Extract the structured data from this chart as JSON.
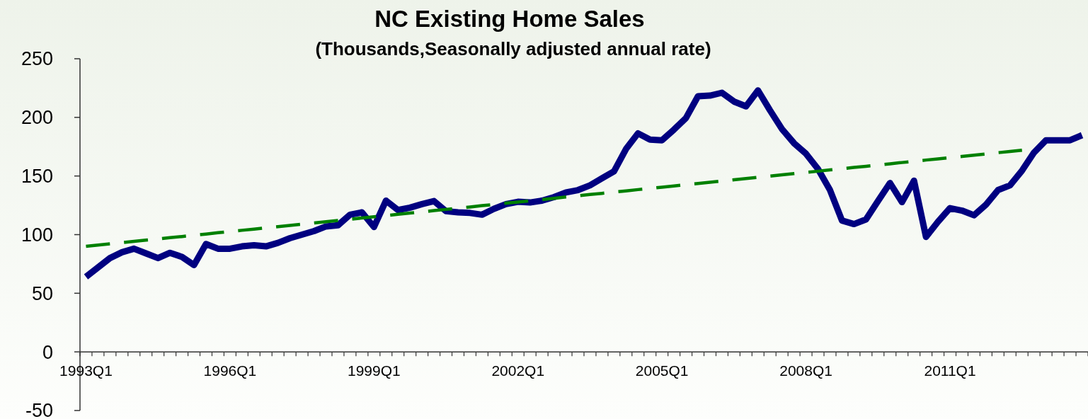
{
  "chart_data": {
    "type": "line",
    "title": "NC Existing Home Sales",
    "subtitle": "(Thousands,Seasonally adjusted annual rate)",
    "categories": [
      "1993Q1",
      null,
      null,
      null,
      null,
      null,
      null,
      null,
      null,
      null,
      null,
      null,
      "1996Q1",
      null,
      null,
      null,
      null,
      null,
      null,
      null,
      null,
      null,
      null,
      null,
      "1999Q1",
      null,
      null,
      null,
      null,
      null,
      null,
      null,
      null,
      null,
      null,
      null,
      "2002Q1",
      null,
      null,
      null,
      null,
      null,
      null,
      null,
      null,
      null,
      null,
      null,
      "2005Q1",
      null,
      null,
      null,
      null,
      null,
      null,
      null,
      null,
      null,
      null,
      null,
      "2008Q1",
      null,
      null,
      null,
      null,
      null,
      null,
      null,
      null,
      null,
      null,
      null,
      "2011Q1",
      null,
      null,
      null,
      null,
      null,
      null,
      null,
      null,
      null,
      null,
      null
    ],
    "series": [
      {
        "color": "#000080",
        "line_style": "solid",
        "values": [
          64,
          72,
          80,
          85,
          88,
          84,
          80,
          84.5,
          81,
          74,
          92,
          88,
          88,
          90,
          91,
          90,
          93,
          97,
          100,
          103,
          107,
          108,
          117,
          119,
          106.5,
          129,
          121,
          123,
          126,
          128.6,
          120,
          119,
          118.5,
          117,
          122,
          126,
          128,
          127.4,
          129,
          132,
          136,
          138,
          142,
          148,
          154,
          173,
          186.4,
          181,
          180.5,
          189.6,
          199.5,
          218,
          218.6,
          221,
          213.5,
          209.4,
          223,
          206,
          190,
          178,
          169,
          156,
          138,
          112,
          109,
          113,
          128.7,
          144,
          127.7,
          146,
          98,
          111,
          122.6,
          120.5,
          116.5,
          125.6,
          138,
          142,
          154.6,
          170,
          180.5,
          180.5,
          180.5,
          184.8
        ]
      },
      {
        "color": "#008000",
        "line_style": "dashed",
        "values": [
          90,
          91.1,
          92.1,
          93.2,
          94.2,
          95.3,
          96.3,
          97.4,
          98.4,
          99.5,
          100.5,
          101.6,
          102.6,
          103.7,
          104.7,
          105.8,
          106.8,
          107.9,
          108.9,
          110,
          111,
          112.1,
          113.1,
          114.2,
          115.2,
          116.3,
          117.3,
          118.4,
          119.4,
          120.5,
          121.5,
          122.6,
          123.6,
          124.7,
          125.7,
          126.8,
          127.8,
          128.9,
          129.9,
          131,
          132.1,
          133.1,
          134.2,
          135.2,
          136.3,
          137.3,
          138.4,
          139.4,
          140.5,
          141.5,
          142.6,
          143.6,
          144.7,
          145.7,
          146.8,
          147.8,
          148.9,
          149.9,
          151,
          152,
          153.1,
          154.1,
          155.2,
          156.2,
          157.3,
          158.3,
          159.4,
          160.4,
          161.5,
          162.5,
          163.6,
          164.6,
          165.7,
          166.7,
          167.8,
          168.8,
          169.9,
          170.9,
          172,
          null,
          null,
          null,
          null,
          null
        ]
      }
    ],
    "ylim": [
      -50,
      250
    ],
    "yticks": [
      -50,
      0,
      50,
      100,
      150,
      200,
      250
    ]
  }
}
